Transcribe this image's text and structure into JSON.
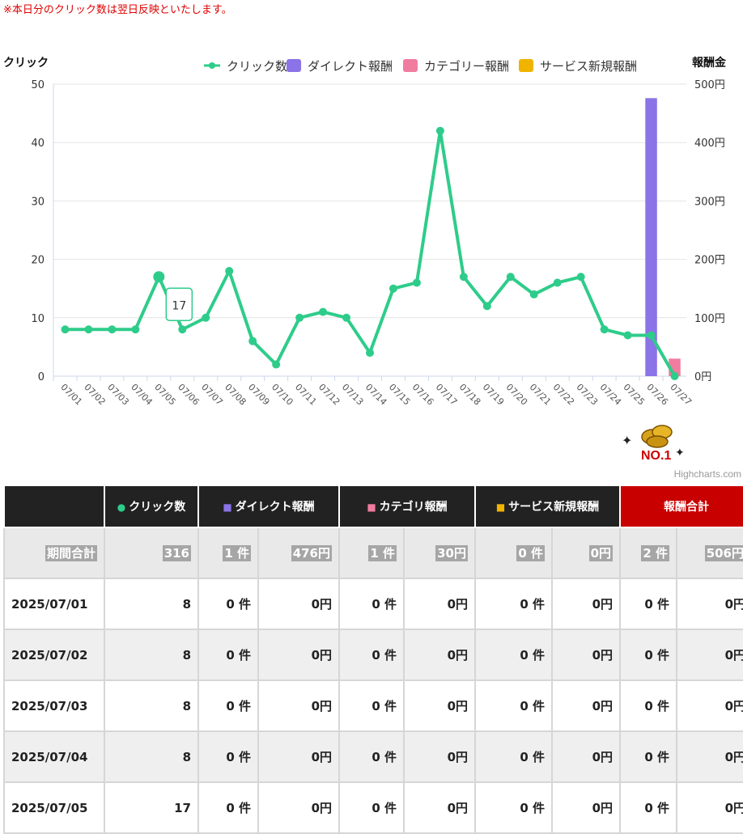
{
  "notice": "※本日分のクリック数は翌日反映といたします。",
  "credit": "Highcharts.com",
  "badge_text": "NO.1",
  "chart_data": {
    "type": "line",
    "left_axis_title": "クリック",
    "right_axis_title": "報酬金",
    "left_ticks": [
      "0",
      "10",
      "20",
      "30",
      "40",
      "50"
    ],
    "right_ticks": [
      "0円",
      "100円",
      "200円",
      "300円",
      "400円",
      "500円"
    ],
    "ylim_left": [
      0,
      50
    ],
    "ylim_right": [
      0,
      500
    ],
    "grid": true,
    "legend_position": "top-right",
    "categories": [
      "07/01",
      "07/02",
      "07/03",
      "07/04",
      "07/05",
      "07/06",
      "07/07",
      "07/08",
      "07/09",
      "07/10",
      "07/11",
      "07/12",
      "07/13",
      "07/14",
      "07/15",
      "07/16",
      "07/17",
      "07/18",
      "07/19",
      "07/20",
      "07/21",
      "07/22",
      "07/23",
      "07/24",
      "07/25",
      "07/26",
      "07/27"
    ],
    "series": [
      {
        "name": "クリック数",
        "type": "line",
        "axis": "left",
        "color": "#2ecc8a",
        "values": [
          8,
          8,
          8,
          8,
          17,
          8,
          10,
          18,
          6,
          2,
          10,
          11,
          10,
          4,
          15,
          16,
          42,
          17,
          12,
          17,
          14,
          16,
          17,
          8,
          7,
          7,
          0
        ]
      },
      {
        "name": "ダイレクト報酬",
        "type": "bar",
        "axis": "right",
        "color": "#8b73e8",
        "values": [
          0,
          0,
          0,
          0,
          0,
          0,
          0,
          0,
          0,
          0,
          0,
          0,
          0,
          0,
          0,
          0,
          0,
          0,
          0,
          0,
          0,
          0,
          0,
          0,
          0,
          476,
          0
        ]
      },
      {
        "name": "カテゴリー報酬",
        "type": "bar",
        "axis": "right",
        "color": "#f07ca0",
        "values": [
          0,
          0,
          0,
          0,
          0,
          0,
          0,
          0,
          0,
          0,
          0,
          0,
          0,
          0,
          0,
          0,
          0,
          0,
          0,
          0,
          0,
          0,
          0,
          0,
          0,
          0,
          30
        ]
      },
      {
        "name": "サービス新規報酬",
        "type": "bar",
        "axis": "right",
        "color": "#f0b400",
        "values": [
          0,
          0,
          0,
          0,
          0,
          0,
          0,
          0,
          0,
          0,
          0,
          0,
          0,
          0,
          0,
          0,
          0,
          0,
          0,
          0,
          0,
          0,
          0,
          0,
          0,
          0,
          0
        ]
      }
    ],
    "tooltip": {
      "category": "07/05",
      "value": "17"
    }
  },
  "table": {
    "headers": [
      {
        "label": "",
        "marker": "",
        "color": ""
      },
      {
        "label": "クリック数",
        "marker": "●",
        "color": "#2ecc8a"
      },
      {
        "label": "ダイレクト報酬",
        "marker": "■",
        "color": "#8b73e8"
      },
      {
        "label": "カテゴリ報酬",
        "marker": "■",
        "color": "#f07ca0"
      },
      {
        "label": "サービス新規報酬",
        "marker": "■",
        "color": "#f0b400"
      },
      {
        "label": "報酬合計",
        "marker": "",
        "color": ""
      }
    ],
    "summary": [
      "期間合計",
      "316",
      "1 件",
      "476円",
      "1 件",
      "30円",
      "0 件",
      "0円",
      "2 件",
      "506円"
    ],
    "rows": [
      [
        "2025/07/01",
        "8",
        "0 件",
        "0円",
        "0 件",
        "0円",
        "0 件",
        "0円",
        "0 件",
        "0円"
      ],
      [
        "2025/07/02",
        "8",
        "0 件",
        "0円",
        "0 件",
        "0円",
        "0 件",
        "0円",
        "0 件",
        "0円"
      ],
      [
        "2025/07/03",
        "8",
        "0 件",
        "0円",
        "0 件",
        "0円",
        "0 件",
        "0円",
        "0 件",
        "0円"
      ],
      [
        "2025/07/04",
        "8",
        "0 件",
        "0円",
        "0 件",
        "0円",
        "0 件",
        "0円",
        "0 件",
        "0円"
      ],
      [
        "2025/07/05",
        "17",
        "0 件",
        "0円",
        "0 件",
        "0円",
        "0 件",
        "0円",
        "0 件",
        "0円"
      ]
    ]
  }
}
